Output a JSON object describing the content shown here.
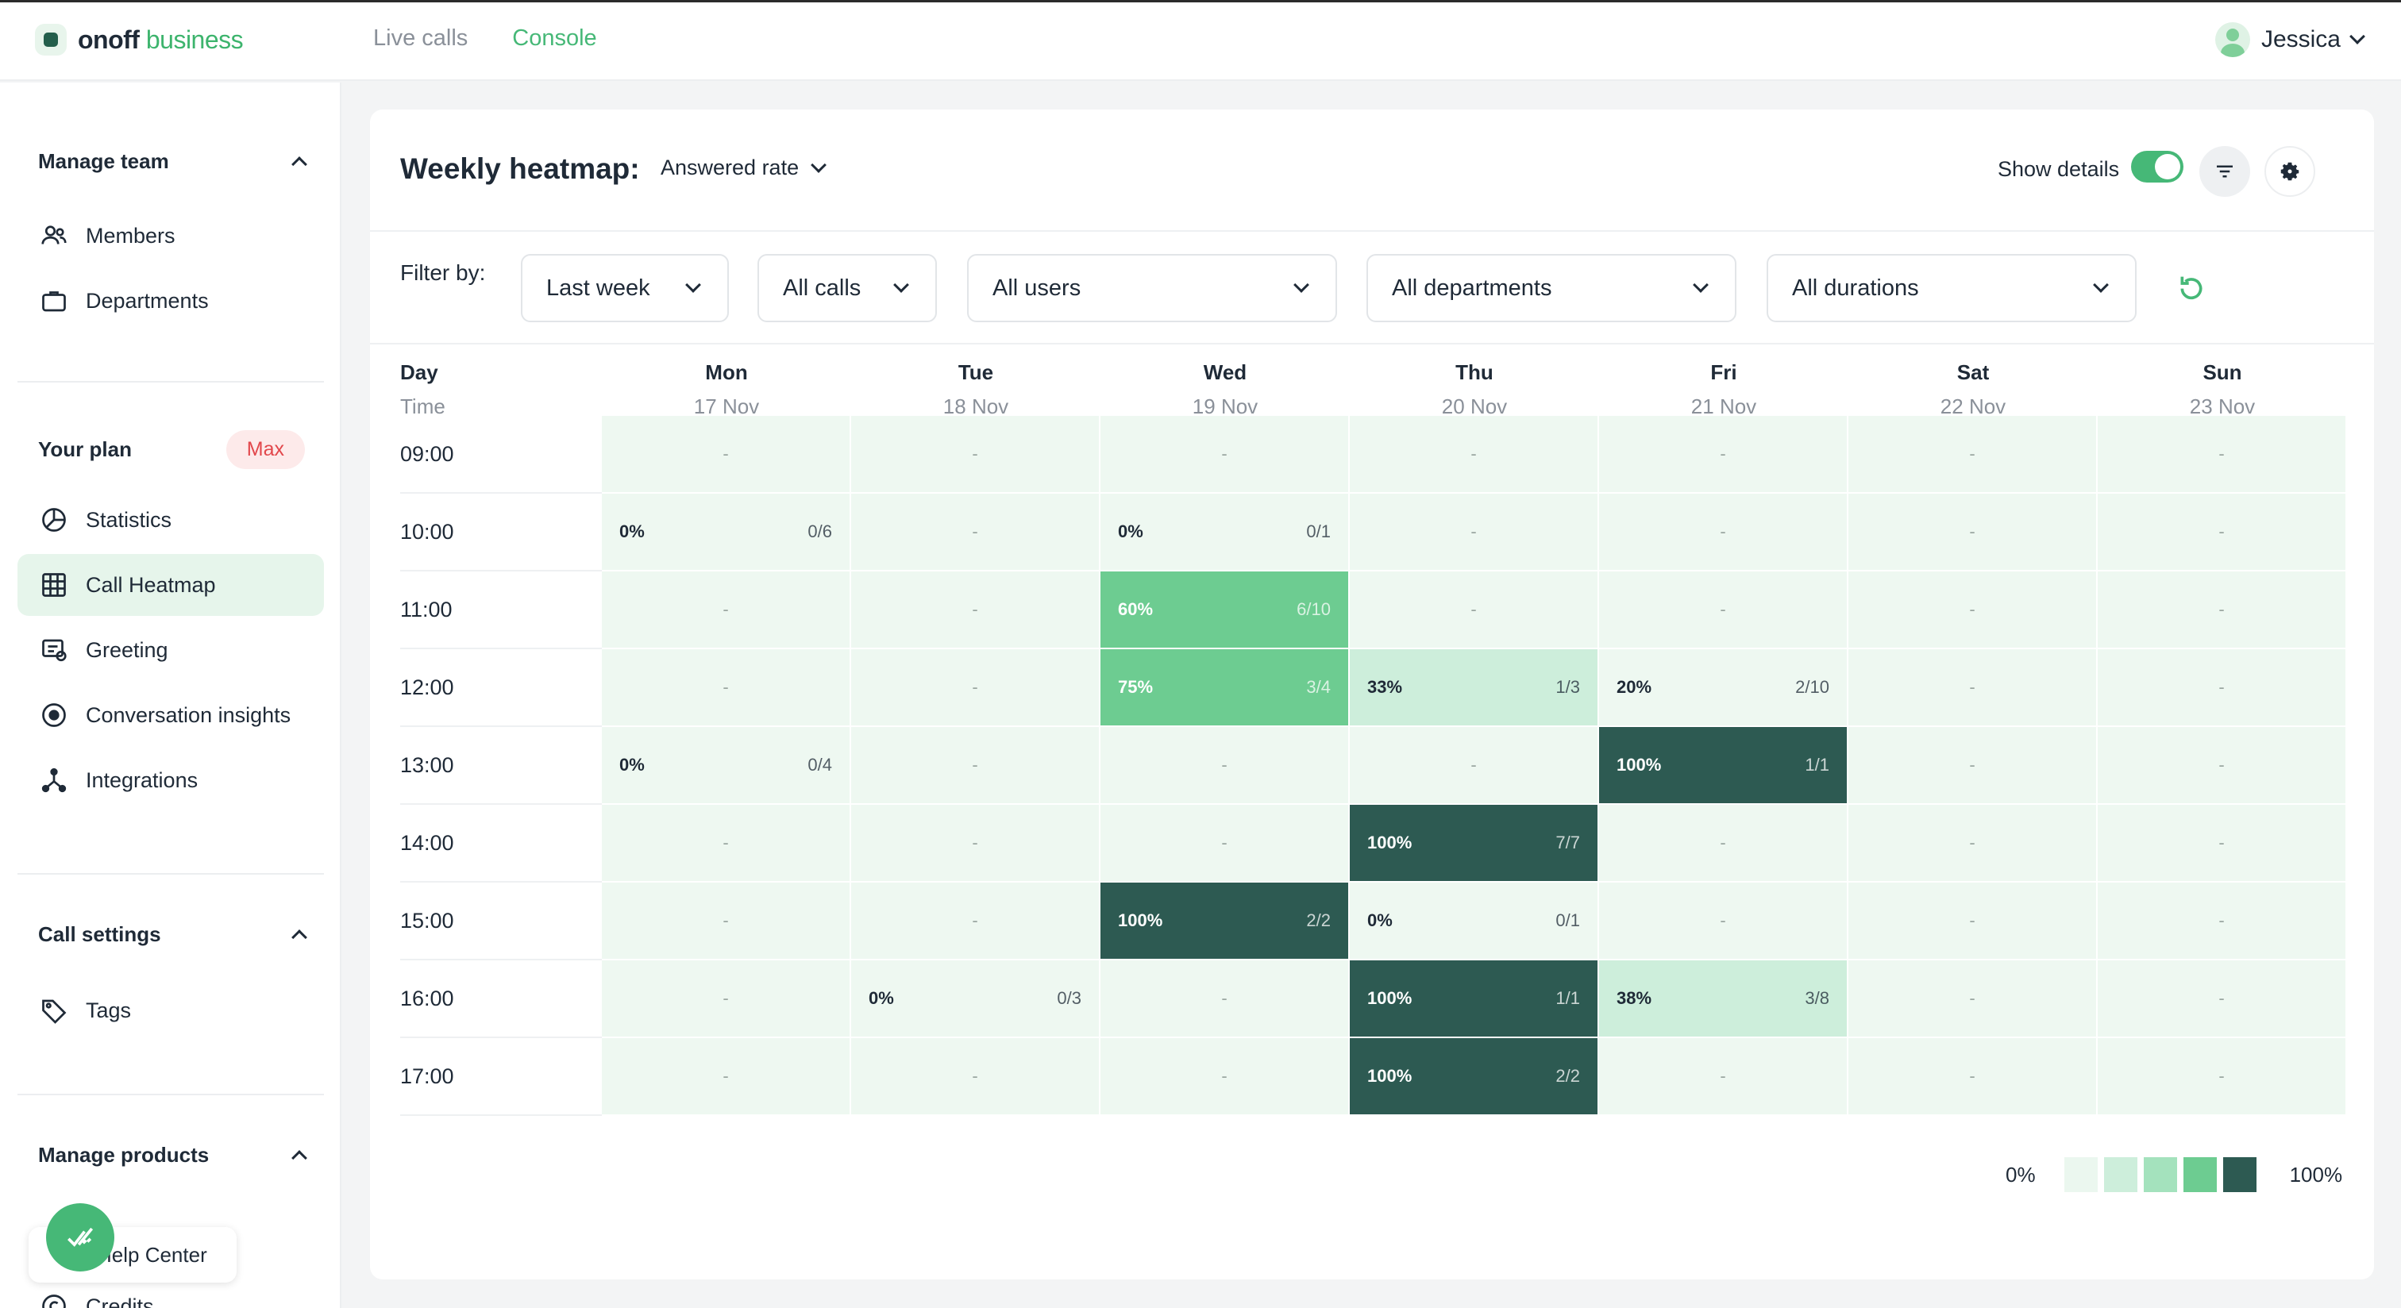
{
  "app": {
    "brand": "onoff",
    "brand_suffix": "business",
    "nav": [
      "Live calls",
      "Console"
    ],
    "active_nav": "Console",
    "user": "Jessica"
  },
  "sidebar": {
    "manage_team": {
      "title": "Manage team",
      "items": [
        {
          "label": "Members",
          "icon": "members-icon"
        },
        {
          "label": "Departments",
          "icon": "briefcase-icon"
        }
      ]
    },
    "plan": {
      "title": "Your plan",
      "badge": "Max",
      "items": [
        {
          "label": "Statistics",
          "icon": "pie-chart-icon"
        },
        {
          "label": "Call Heatmap",
          "icon": "grid-icon",
          "active": true
        },
        {
          "label": "Greeting",
          "icon": "greeting-icon"
        },
        {
          "label": "Conversation insights",
          "icon": "target-icon"
        },
        {
          "label": "Integrations",
          "icon": "integrations-icon"
        }
      ]
    },
    "call_settings": {
      "title": "Call settings",
      "items": [
        {
          "label": "Tags",
          "icon": "tag-icon"
        }
      ]
    },
    "manage_products": {
      "title": "Manage products",
      "items": [
        {
          "label": "Help Center",
          "icon": "help-icon"
        },
        {
          "label": "Credits",
          "icon": "credits-icon"
        }
      ]
    }
  },
  "heatmap": {
    "title": "Weekly heatmap:",
    "metric": "Answered rate",
    "show_details_label": "Show details",
    "show_details_on": true,
    "filter_label": "Filter by:",
    "filters": {
      "period": "Last week",
      "calls": "All calls",
      "users": "All users",
      "departments": "All departments",
      "durations": "All durations"
    },
    "day_header": "Day",
    "time_header": "Time",
    "days": [
      {
        "day": "Mon",
        "date": "17 Nov"
      },
      {
        "day": "Tue",
        "date": "18 Nov"
      },
      {
        "day": "Wed",
        "date": "19 Nov"
      },
      {
        "day": "Thu",
        "date": "20 Nov"
      },
      {
        "day": "Fri",
        "date": "21 Nov"
      },
      {
        "day": "Sat",
        "date": "22 Nov"
      },
      {
        "day": "Sun",
        "date": "23 Nov"
      }
    ],
    "times": [
      "09:00",
      "10:00",
      "11:00",
      "12:00",
      "13:00",
      "14:00",
      "15:00",
      "16:00",
      "17:00"
    ],
    "cells": [
      [
        "-",
        "-",
        "-",
        "-",
        "-",
        "-",
        "-"
      ],
      [
        {
          "pct": "0%",
          "ratio": "0/6"
        },
        "-",
        {
          "pct": "0%",
          "ratio": "0/1"
        },
        "-",
        "-",
        "-",
        "-"
      ],
      [
        "-",
        "-",
        {
          "pct": "60%",
          "ratio": "6/10"
        },
        "-",
        "-",
        "-",
        "-"
      ],
      [
        "-",
        "-",
        {
          "pct": "75%",
          "ratio": "3/4"
        },
        {
          "pct": "33%",
          "ratio": "1/3"
        },
        {
          "pct": "20%",
          "ratio": "2/10"
        },
        "-",
        "-"
      ],
      [
        {
          "pct": "0%",
          "ratio": "0/4"
        },
        "-",
        "-",
        "-",
        {
          "pct": "100%",
          "ratio": "1/1"
        },
        "-",
        "-"
      ],
      [
        "-",
        "-",
        "-",
        {
          "pct": "100%",
          "ratio": "7/7"
        },
        "-",
        "-",
        "-"
      ],
      [
        "-",
        "-",
        {
          "pct": "100%",
          "ratio": "2/2"
        },
        {
          "pct": "0%",
          "ratio": "0/1"
        },
        "-",
        "-",
        "-"
      ],
      [
        "-",
        {
          "pct": "0%",
          "ratio": "0/3"
        },
        "-",
        {
          "pct": "100%",
          "ratio": "1/1"
        },
        {
          "pct": "38%",
          "ratio": "3/8"
        },
        "-",
        "-"
      ],
      [
        "-",
        "-",
        "-",
        {
          "pct": "100%",
          "ratio": "2/2"
        },
        "-",
        "-",
        "-"
      ]
    ],
    "legend_min": "0%",
    "legend_max": "100%",
    "legend_colors": [
      "#ebf7ef",
      "#cdeedb",
      "#a4e2bd",
      "#6dcc91",
      "#2d5a52"
    ]
  },
  "colors": {
    "accent": "#46b877",
    "empty_cell": "#eef8f1",
    "dark_cell": "#2d5a52"
  }
}
